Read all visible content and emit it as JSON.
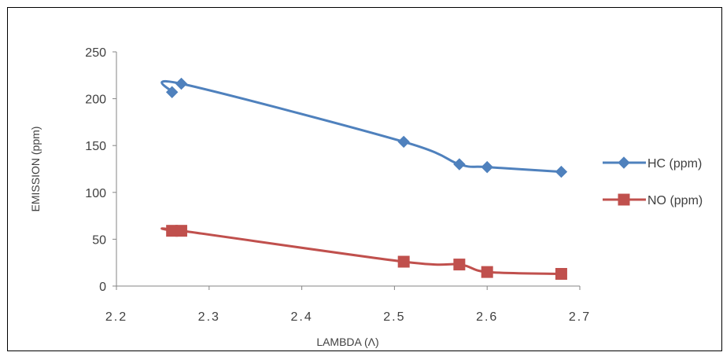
{
  "chart_data": {
    "type": "line",
    "title": "",
    "xlabel": "LAMBDA (Λ)",
    "ylabel": "EMISSION (ppm)",
    "xlim": [
      2.2,
      2.7
    ],
    "ylim": [
      0,
      250
    ],
    "xticks": [
      "2.2",
      "2.3",
      "2.4",
      "2.5",
      "2.6",
      "2.7"
    ],
    "yticks": [
      "0",
      "50",
      "100",
      "150",
      "200",
      "250"
    ],
    "grid": false,
    "legend_position": "right",
    "series": [
      {
        "name": "HC (ppm)",
        "color": "#4F81BD",
        "marker": "diamond",
        "x": [
          2.26,
          2.27,
          2.51,
          2.57,
          2.6,
          2.68
        ],
        "y": [
          207,
          216,
          154,
          130,
          127,
          122
        ]
      },
      {
        "name": "NO (ppm)",
        "color": "#C0504D",
        "marker": "square",
        "x": [
          2.26,
          2.27,
          2.51,
          2.57,
          2.6,
          2.68
        ],
        "y": [
          59,
          59,
          26,
          23,
          15,
          13
        ]
      }
    ]
  }
}
